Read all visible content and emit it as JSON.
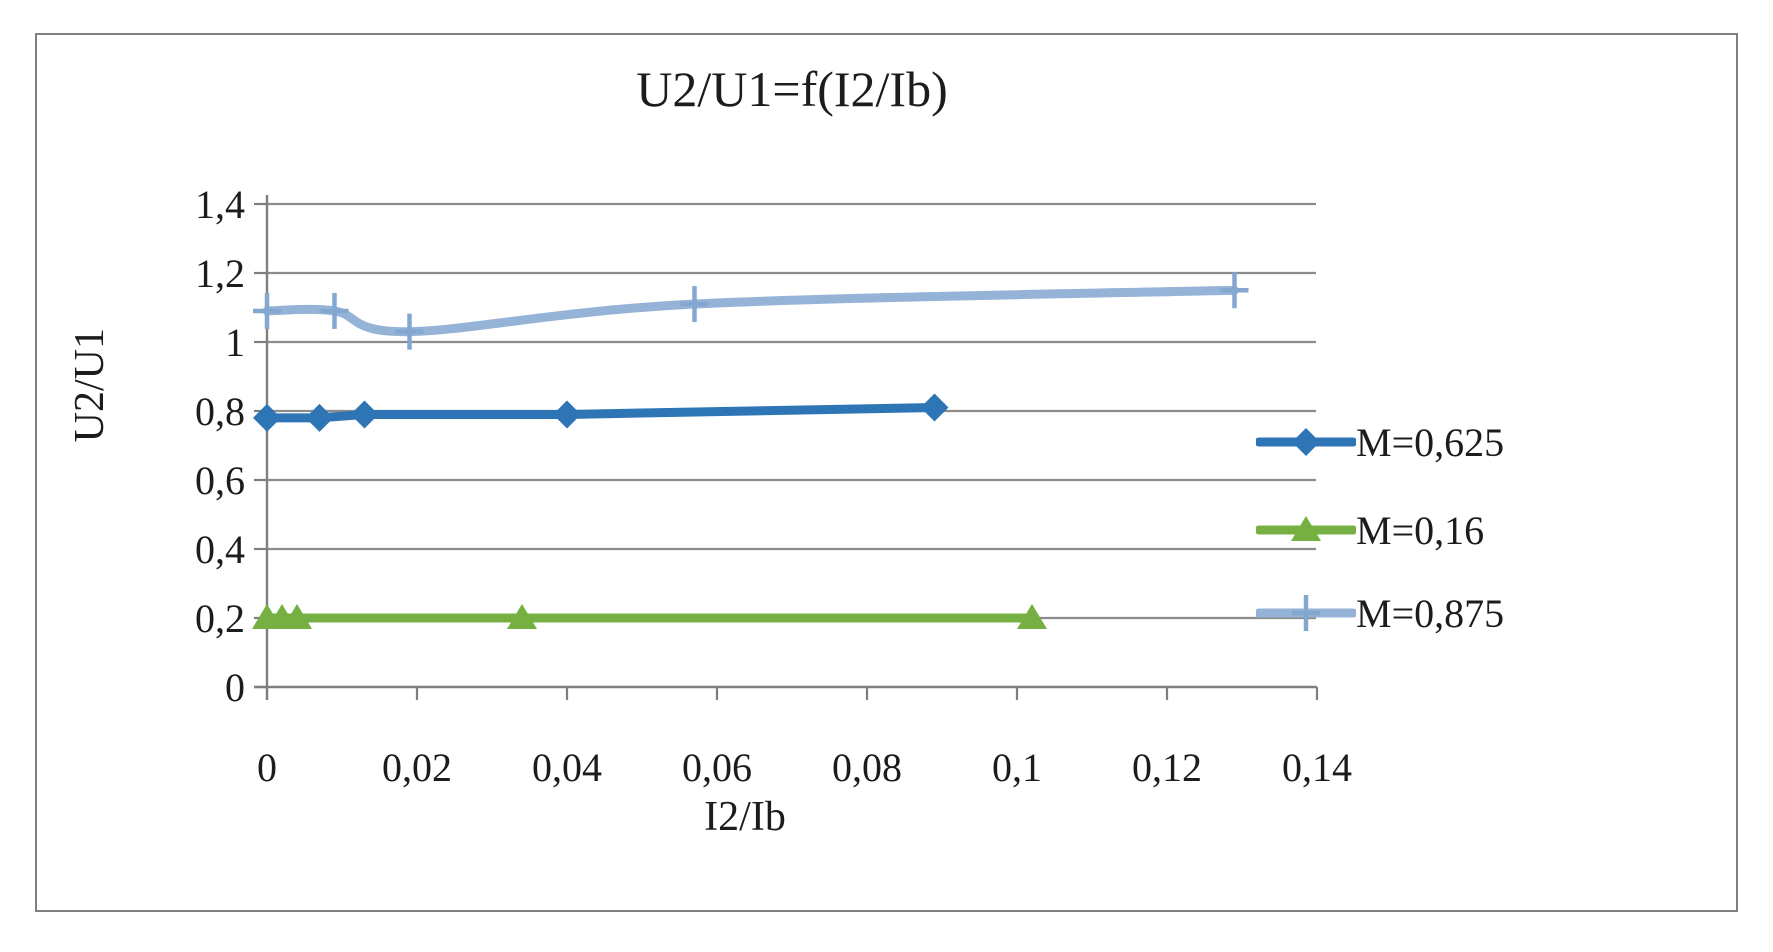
{
  "frame": {
    "border_color": "#808080",
    "background": "#FFFFFF"
  },
  "chart_data": {
    "type": "line",
    "title": "U2/U1=f(I2/Ib)",
    "xlabel": "I2/Ib",
    "ylabel": "U2/U1",
    "xlim": [
      0,
      0.14
    ],
    "ylim": [
      0,
      1.4
    ],
    "x_ticks": [
      0,
      0.02,
      0.04,
      0.06,
      0.08,
      0.1,
      0.12,
      0.14
    ],
    "x_tick_labels": [
      "0",
      "0,02",
      "0,04",
      "0,06",
      "0,08",
      "0,1",
      "0,12",
      "0,14"
    ],
    "y_ticks": [
      0,
      0.2,
      0.4,
      0.6,
      0.8,
      1,
      1.2,
      1.4
    ],
    "y_tick_labels": [
      "0",
      "0,2",
      "0,4",
      "0,6",
      "0,8",
      "1",
      "1,2",
      "1,4"
    ],
    "grid": "horizontal-only",
    "legend_position": "right",
    "decimal_separator": ",",
    "series": [
      {
        "name": "M=0,625",
        "color": "#2E75B6",
        "marker": "diamond",
        "marker_color": "#2E75B6",
        "smooth": false,
        "x": [
          0,
          0.007,
          0.013,
          0.04,
          0.089
        ],
        "y": [
          0.78,
          0.78,
          0.79,
          0.79,
          0.81
        ]
      },
      {
        "name": "M=0,16",
        "color": "#76B043",
        "marker": "triangle",
        "marker_color": "#76B043",
        "smooth": false,
        "x": [
          0,
          0.002,
          0.004,
          0.034,
          0.102
        ],
        "y": [
          0.2,
          0.2,
          0.2,
          0.2,
          0.2
        ]
      },
      {
        "name": "M=0,875",
        "color": "#95B3D7",
        "marker": "plus",
        "marker_color": "#84A7D0",
        "smooth": true,
        "x": [
          0,
          0.009,
          0.019,
          0.057,
          0.129
        ],
        "y": [
          1.09,
          1.09,
          1.03,
          1.11,
          1.15
        ]
      }
    ],
    "style": {
      "grid_color": "#8C8C8C",
      "axis_color": "#7F7F7F",
      "text_color": "#1C1C1C",
      "line_width": 9
    }
  }
}
